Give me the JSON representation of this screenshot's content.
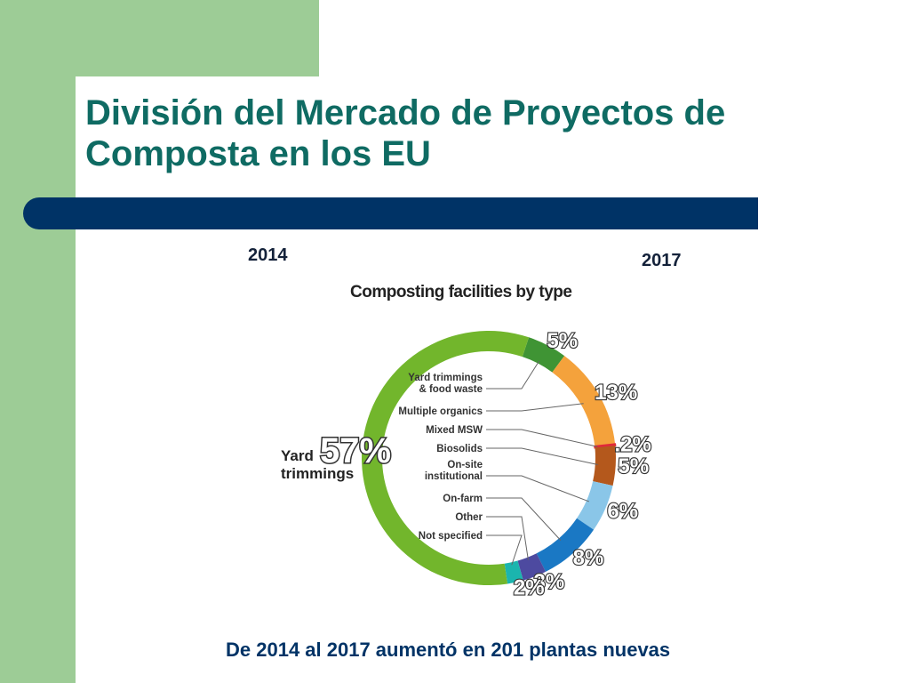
{
  "slide": {
    "title": "División del Mercado de Proyectos de Composta en los EU",
    "year_left": "2014",
    "year_right": "2017",
    "footer": "De 2014 al 2017 aumentó en 201 plantas nuevas"
  },
  "colors": {
    "band": "#9dcc96",
    "title": "#0f6b63",
    "bar": "#003366"
  },
  "chart_data": {
    "type": "pie",
    "title": "Composting facilities by type",
    "unit": "%",
    "slices": [
      {
        "label": "Yard trimmings",
        "value": 57,
        "display": "57%",
        "color": "#72b62c"
      },
      {
        "label": "Yard trimmings & food waste",
        "value": 5,
        "display": "5%",
        "color": "#3f9434"
      },
      {
        "label": "Multiple organics",
        "value": 13,
        "display": "13%",
        "color": "#f4a23c"
      },
      {
        "label": "Mixed MSW",
        "value": 0.2,
        "display": ".2%",
        "color": "#e0283a"
      },
      {
        "label": "Biosolids",
        "value": 5,
        "display": "5%",
        "color": "#b4581c"
      },
      {
        "label": "On-site institutional",
        "value": 6,
        "display": "6%",
        "color": "#8ac6e8"
      },
      {
        "label": "On-farm",
        "value": 8,
        "display": "8%",
        "color": "#1a78c4"
      },
      {
        "label": "Other",
        "value": 3,
        "display": "3%",
        "color": "#4d4aa0"
      },
      {
        "label": "Not specified",
        "value": 2,
        "display": "2%",
        "color": "#1bb5ae"
      }
    ]
  }
}
